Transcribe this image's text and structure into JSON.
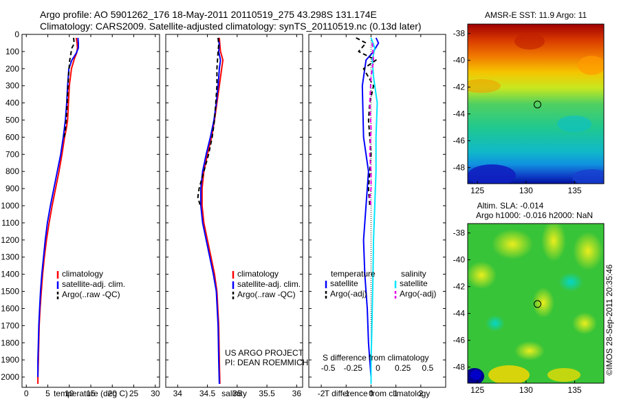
{
  "header": {
    "line1": "Argo profile: AO 5901262_176 18-May-2011 20110519_275 43.298S 131.174E",
    "line2": "Climatology: CARS2009. Satellite-adjusted climatology: synTS_20110519.nc (0.13d later)"
  },
  "map_titles": {
    "sst": "AMSR-E SST: 11.9 Argo: 11",
    "sla_line1": "Altim. SLA: -0.014",
    "sla_line2": "Argo h1000: -0.016 h2000: NaN"
  },
  "credit": "©IMOS 28-Sep-2011 20:35:46",
  "project_note": [
    "US ARGO PROJECT",
    "PI: DEAN ROEMMICH"
  ],
  "chart_data": [
    {
      "type": "line",
      "id": "temperature",
      "xlabel": "temperature (deg C)",
      "ylabel": "",
      "xlim": [
        -1,
        31
      ],
      "ylim": [
        2060,
        0
      ],
      "xticks": [
        0,
        5,
        10,
        15,
        20,
        25,
        30
      ],
      "yticks": [
        0,
        100,
        200,
        300,
        400,
        500,
        600,
        700,
        800,
        900,
        1000,
        1100,
        1200,
        1300,
        1400,
        1500,
        1600,
        1700,
        1800,
        1900,
        2000
      ],
      "legend": [
        "climatology",
        "satellite-adj. clim.",
        "Argo(..raw -QC)"
      ],
      "series": [
        {
          "name": "climatology",
          "color": "#ff0000",
          "dash": "",
          "x": [
            11.6,
            11.8,
            11.9,
            11.7,
            11.2,
            10.5,
            10.0,
            9.8,
            9.6,
            9.3,
            8.9,
            8.3,
            7.6,
            6.8,
            6.0,
            5.3,
            4.7,
            4.2,
            3.8,
            3.5,
            3.2,
            3.0,
            2.9,
            2.8,
            2.7,
            2.7
          ],
          "y": [
            20,
            50,
            80,
            110,
            140,
            200,
            300,
            400,
            500,
            550,
            600,
            700,
            800,
            900,
            1000,
            1100,
            1200,
            1300,
            1400,
            1500,
            1600,
            1700,
            1800,
            1900,
            2000,
            2040
          ]
        },
        {
          "name": "satellite-adj. clim.",
          "color": "#0000ff",
          "dash": "",
          "x": [
            12.0,
            12.1,
            12.1,
            11.6,
            10.6,
            9.9,
            9.6,
            9.4,
            9.1,
            8.6,
            8.0,
            7.2,
            6.4,
            5.6,
            4.9,
            4.4,
            4.0,
            3.6,
            3.3,
            3.1,
            2.9,
            2.8,
            2.7,
            2.7
          ],
          "y": [
            20,
            50,
            80,
            110,
            150,
            200,
            300,
            400,
            500,
            600,
            700,
            800,
            900,
            1000,
            1100,
            1200,
            1300,
            1400,
            1500,
            1600,
            1700,
            1800,
            1900,
            2000
          ]
        },
        {
          "name": "Argo(..raw -QC)",
          "color": "#000000",
          "dash": "6,4",
          "x": [
            11.0,
            11.1,
            11.0,
            10.6,
            10.1,
            9.8,
            9.6,
            9.4,
            9.1,
            8.8
          ],
          "y": [
            20,
            40,
            60,
            80,
            150,
            250,
            350,
            450,
            550,
            600
          ]
        }
      ]
    },
    {
      "type": "line",
      "id": "salinity",
      "xlabel": "salinity",
      "ylabel": "",
      "xlim": [
        33.8,
        36.1
      ],
      "ylim": [
        2060,
        0
      ],
      "xticks": [
        34,
        34.5,
        35,
        35.5,
        36
      ],
      "legend": [
        "climatology",
        "satellite-adj. clim.",
        "Argo(..raw -QC)"
      ],
      "series": [
        {
          "name": "climatology",
          "color": "#ff0000",
          "dash": "",
          "x": [
            34.7,
            34.71,
            34.72,
            34.76,
            34.74,
            34.7,
            34.66,
            34.62,
            34.57,
            34.5,
            34.44,
            34.41,
            34.41,
            34.44,
            34.5,
            34.56,
            34.62,
            34.66,
            34.69,
            34.7,
            34.71
          ],
          "y": [
            20,
            60,
            100,
            150,
            200,
            300,
            400,
            500,
            600,
            700,
            800,
            900,
            1000,
            1100,
            1200,
            1300,
            1400,
            1500,
            1700,
            1900,
            2040
          ]
        },
        {
          "name": "satellite-adj. clim.",
          "color": "#0000ff",
          "dash": "",
          "x": [
            34.68,
            34.7,
            34.69,
            34.72,
            34.7,
            34.68,
            34.65,
            34.61,
            34.55,
            34.48,
            34.42,
            34.39,
            34.39,
            34.42,
            34.48,
            34.54,
            34.6,
            34.65,
            34.68,
            34.69,
            34.7
          ],
          "y": [
            20,
            60,
            100,
            150,
            200,
            300,
            400,
            500,
            600,
            700,
            800,
            900,
            1000,
            1100,
            1200,
            1300,
            1400,
            1500,
            1700,
            1900,
            2040
          ]
        },
        {
          "name": "Argo(..raw -QC)",
          "color": "#000000",
          "dash": "6,4",
          "x": [
            34.68,
            34.69,
            34.68,
            34.66,
            34.66,
            34.64,
            34.62,
            34.58,
            34.52,
            34.44,
            34.36,
            34.34,
            34.38
          ],
          "y": [
            20,
            60,
            100,
            200,
            300,
            400,
            500,
            600,
            700,
            800,
            900,
            950,
            1000
          ]
        }
      ]
    },
    {
      "type": "line",
      "id": "difference",
      "xlabel": "T difference from climatology",
      "xlabel_top": "S difference from climatology",
      "ylabel": "",
      "xlim": [
        -2.5,
        3.0
      ],
      "ylim": [
        2060,
        0
      ],
      "xticks": [
        -2,
        -1,
        0,
        1,
        2
      ],
      "xtick_labels_bottom": [
        "-2",
        "-1",
        "0",
        "1",
        "2"
      ],
      "xtick_labels_top": [
        "-0.5",
        "-0.25",
        "0",
        "0.25",
        "0.5"
      ],
      "legend": {
        "temperature": "temperature",
        "salinity": "salinity",
        "entries": [
          "satellite",
          "Argo(-adj)",
          "satellite",
          "Argo(-adj)"
        ]
      },
      "series": [
        {
          "name": "satellite",
          "group": "temperature",
          "color": "#0000ff",
          "dash": "",
          "x": [
            0.2,
            0.3,
            0.1,
            -0.2,
            -0.35,
            -0.3,
            -0.1,
            -0.2,
            -0.3,
            -0.25,
            -0.15,
            -0.1,
            -0.05,
            0.0,
            0.0
          ],
          "y": [
            20,
            50,
            100,
            150,
            300,
            600,
            800,
            1000,
            1200,
            1400,
            1600,
            1800,
            1900,
            2000,
            2040
          ]
        },
        {
          "name": "Argo(-adj)",
          "group": "temperature",
          "color": "#000000",
          "dash": "6,4",
          "x": [
            -0.6,
            -0.2,
            -0.5,
            0.2,
            -0.3,
            0.1,
            -0.05,
            -0.1,
            -0.05,
            0.0,
            -0.05,
            -0.1,
            -0.05
          ],
          "y": [
            20,
            50,
            100,
            150,
            200,
            300,
            400,
            500,
            600,
            700,
            800,
            900,
            1000
          ]
        },
        {
          "name": "satellite",
          "group": "salinity",
          "color": "#00e5ff",
          "dash": "",
          "x": [
            0.0,
            0.15,
            0.05,
            0.1,
            0.25,
            0.2,
            0.2,
            0.15,
            0.1,
            0.08,
            0.05,
            0.02,
            0.0,
            0.0
          ],
          "y": [
            20,
            80,
            150,
            250,
            400,
            600,
            800,
            1000,
            1200,
            1400,
            1600,
            1800,
            1900,
            2040
          ]
        },
        {
          "name": "Argo(-adj)",
          "group": "salinity",
          "color": "#e600e6",
          "dash": "6,4",
          "x": [
            0.05,
            0.1,
            0.0,
            -0.05,
            0.0,
            -0.05,
            0.0,
            0.0,
            -0.05,
            0.0
          ],
          "y": [
            50,
            150,
            250,
            400,
            550,
            700,
            800,
            900,
            950,
            1000
          ]
        }
      ]
    },
    {
      "type": "heatmap",
      "id": "sst_map",
      "xlim": [
        124,
        138
      ],
      "ylim": [
        -49.2,
        -37.3
      ],
      "xticks": [
        125,
        130,
        135
      ],
      "yticks": [
        -38,
        -40,
        -42,
        -44,
        -46,
        -48
      ],
      "argo_position": {
        "lon": 131.174,
        "lat": -43.298
      }
    },
    {
      "type": "heatmap",
      "id": "sla_map",
      "xlim": [
        124,
        138
      ],
      "ylim": [
        -49.2,
        -37.3
      ],
      "xticks": [
        125,
        130,
        135
      ],
      "yticks": [
        -38,
        -40,
        -42,
        -44,
        -46,
        -48
      ],
      "argo_position": {
        "lon": 131.174,
        "lat": -43.298
      }
    }
  ]
}
